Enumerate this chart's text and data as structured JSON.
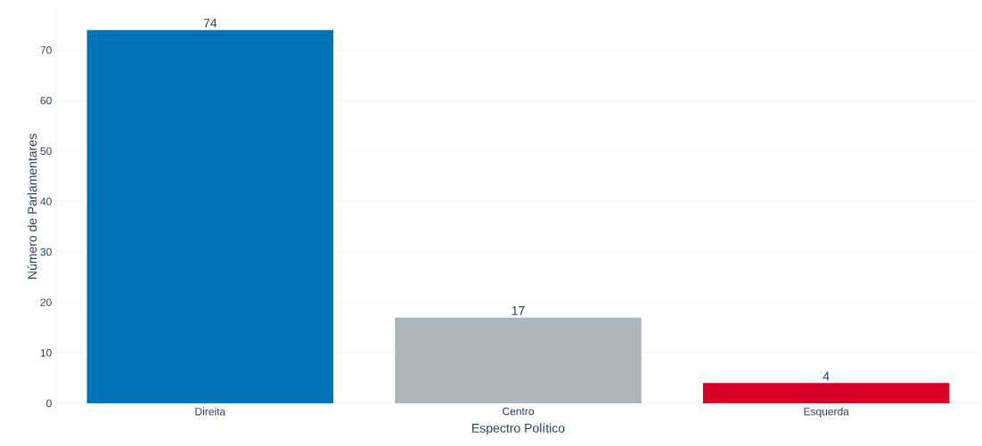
{
  "chart_data": {
    "type": "bar",
    "xlabel": "Espectro Político",
    "ylabel": "Número de Parlamentares",
    "categories": [
      "Direita",
      "Centro",
      "Esquerda"
    ],
    "values": [
      74,
      17,
      4
    ],
    "colors": [
      "#0072b5",
      "#adb5bd",
      "#d90028"
    ],
    "ylim": [
      0,
      78
    ],
    "yticks": [
      0,
      10,
      20,
      30,
      40,
      50,
      60,
      70
    ],
    "grid": "y",
    "data_labels": true
  }
}
